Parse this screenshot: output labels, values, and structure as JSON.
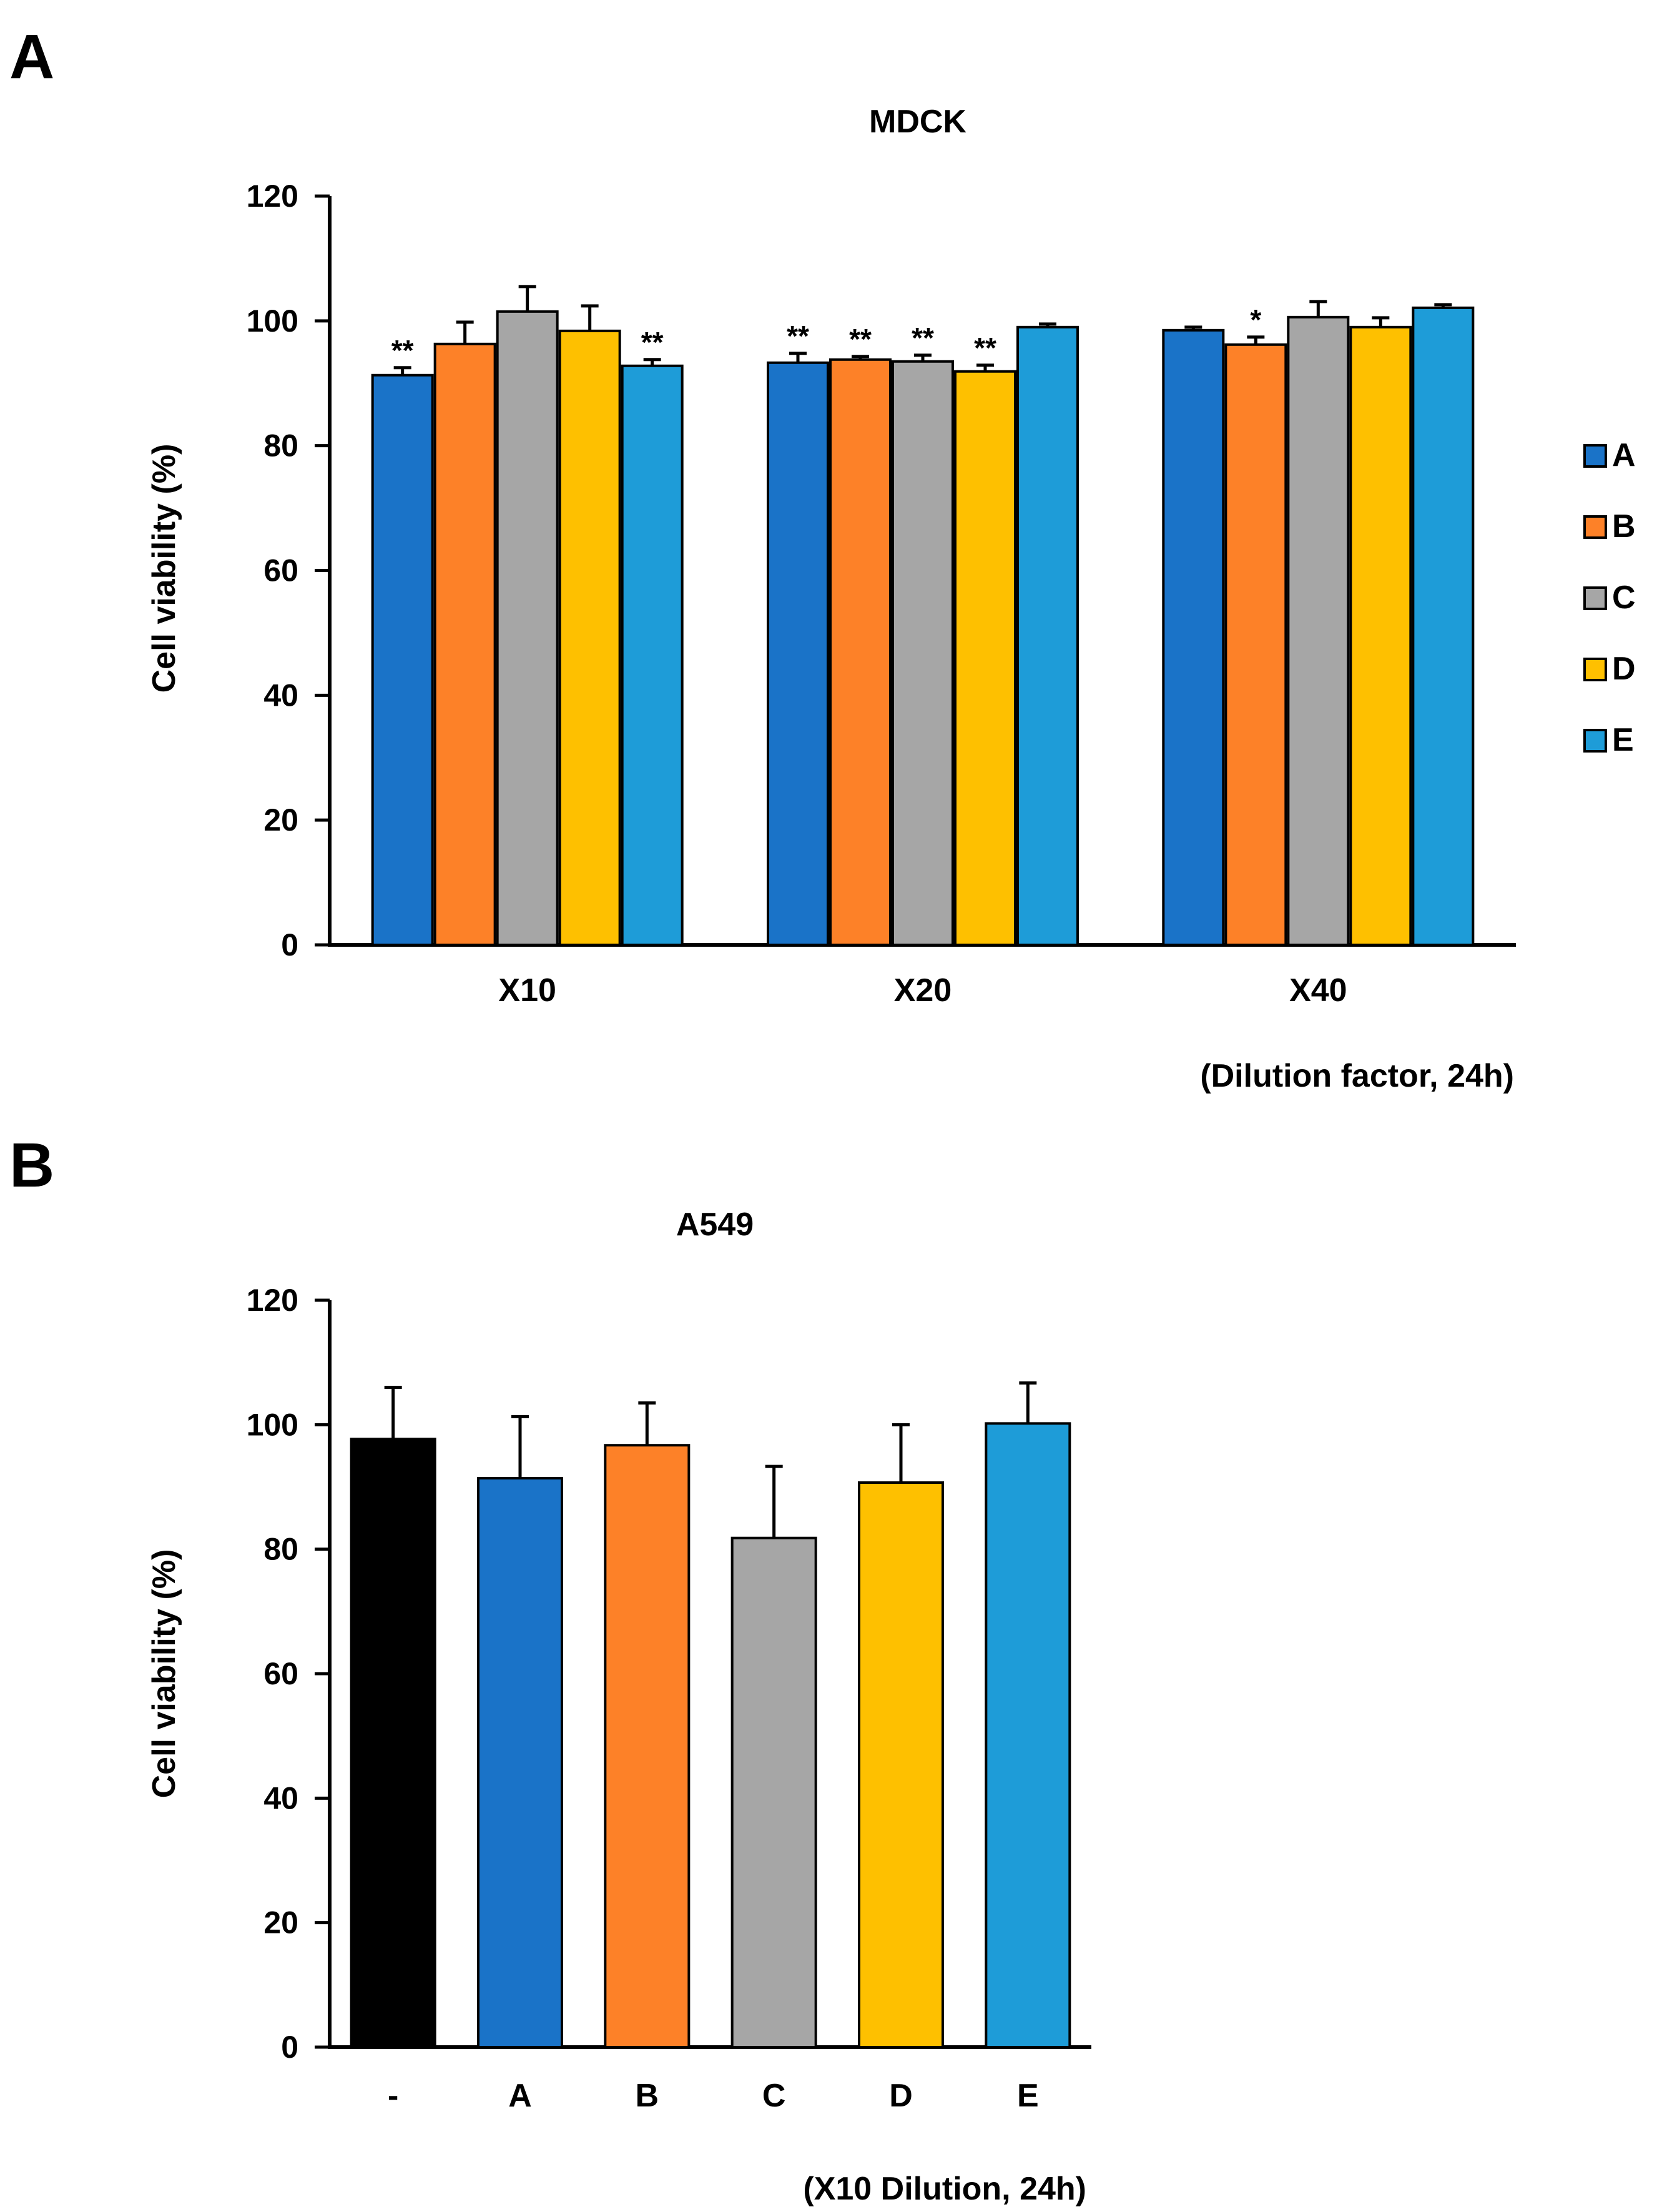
{
  "panels": {
    "a": {
      "letter": "A",
      "title": "MDCK",
      "ylabel": "Cell viability (%)",
      "xnote": "(Dilution factor, 24h)"
    },
    "b": {
      "letter": "B",
      "title": "A549",
      "ylabel": "Cell viability (%)",
      "xnote": "(X10 Dilution, 24h)"
    }
  },
  "colors": {
    "A": "#1a73c8",
    "B": "#fd8128",
    "C": "#a6a6a6",
    "D": "#fec000",
    "E": "#1e9cd8",
    "control": "#000000"
  },
  "legend": [
    "A",
    "B",
    "C",
    "D",
    "E"
  ],
  "chart_data": [
    {
      "type": "bar",
      "title": "MDCK",
      "ylabel": "Cell viability (%)",
      "categories": [
        "X10",
        "X20",
        "X40"
      ],
      "ylim": [
        0,
        120
      ],
      "yticks": [
        0,
        20,
        40,
        60,
        80,
        100,
        120
      ],
      "series": [
        {
          "name": "A",
          "values": [
            91.3,
            93.3,
            98.5
          ],
          "errors": [
            1.2,
            1.5,
            0.5
          ],
          "sig": [
            "**",
            "**",
            ""
          ]
        },
        {
          "name": "B",
          "values": [
            96.3,
            93.8,
            96.2
          ],
          "errors": [
            3.5,
            0.5,
            1.2
          ],
          "sig": [
            "",
            "**",
            "*"
          ]
        },
        {
          "name": "C",
          "values": [
            101.5,
            93.5,
            100.6
          ],
          "errors": [
            4.0,
            1.0,
            2.5
          ],
          "sig": [
            "",
            "**",
            ""
          ]
        },
        {
          "name": "D",
          "values": [
            98.4,
            91.9,
            99.0
          ],
          "errors": [
            4.0,
            1.0,
            1.5
          ],
          "sig": [
            "",
            "**",
            ""
          ]
        },
        {
          "name": "E",
          "values": [
            92.8,
            99.0,
            102.1
          ],
          "errors": [
            1.0,
            0.5,
            0.5
          ],
          "sig": [
            "**",
            "",
            ""
          ]
        }
      ],
      "legend_position": "right"
    },
    {
      "type": "bar",
      "title": "A549",
      "ylabel": "Cell viability (%)",
      "categories": [
        "-",
        "A",
        "B",
        "C",
        "D",
        "E"
      ],
      "ylim": [
        0,
        120
      ],
      "yticks": [
        0,
        20,
        40,
        60,
        80,
        100,
        120
      ],
      "values": [
        97.7,
        91.4,
        96.7,
        81.8,
        90.7,
        100.2
      ],
      "errors": [
        8.3,
        9.9,
        6.8,
        11.5,
        9.3,
        6.5
      ],
      "color_keys": [
        "control",
        "A",
        "B",
        "C",
        "D",
        "E"
      ]
    }
  ]
}
